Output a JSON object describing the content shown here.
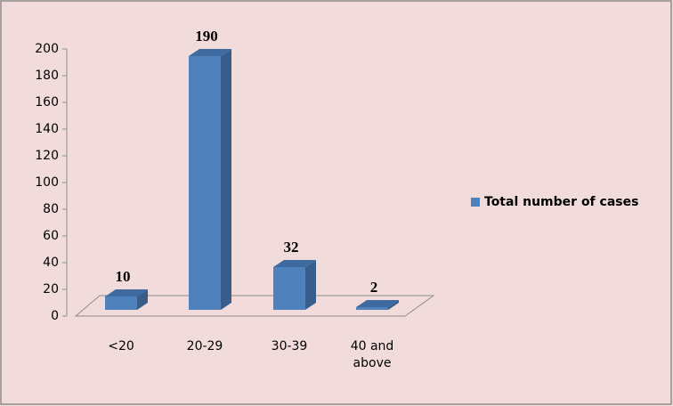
{
  "chart_data": {
    "type": "bar3d",
    "categories": [
      "<20",
      "20-29",
      "30-39",
      "40 and above"
    ],
    "series": [
      {
        "name": "Total number of cases",
        "color": "#4f81bd",
        "values": [
          10,
          190,
          32,
          2
        ]
      }
    ],
    "ylim": [
      0,
      200
    ],
    "yticks": [
      0,
      20,
      40,
      60,
      80,
      100,
      120,
      140,
      160,
      180,
      200
    ],
    "legend": "right"
  }
}
